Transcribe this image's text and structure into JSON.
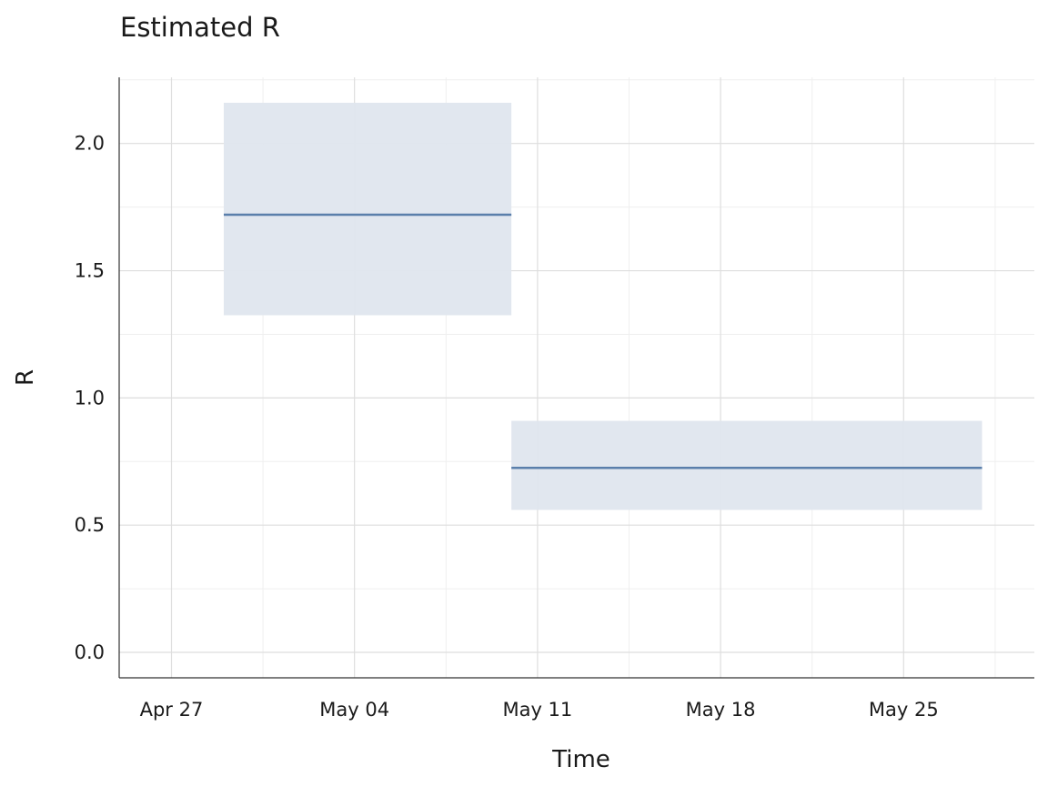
{
  "chart_data": {
    "type": "line",
    "title": "Estimated R",
    "xlabel": "Time",
    "ylabel": "R",
    "x_ticks": [
      "Apr 27",
      "May 04",
      "May 11",
      "May 18",
      "May 25"
    ],
    "x_tick_dates": [
      "2020-04-27",
      "2020-05-04",
      "2020-05-11",
      "2020-05-18",
      "2020-05-25"
    ],
    "xlim": [
      "2020-04-25",
      "2020-05-30"
    ],
    "y_ticks": [
      "0.0",
      "0.5",
      "1.0",
      "1.5",
      "2.0"
    ],
    "ylim": [
      -0.1,
      2.26
    ],
    "grid": true,
    "series": [
      {
        "segments": [
          {
            "x_start": "2020-04-29",
            "x_end": "2020-05-10",
            "mean": 1.72,
            "lower": 1.325,
            "upper": 2.16
          },
          {
            "x_start": "2020-05-10",
            "x_end": "2020-05-28",
            "mean": 0.725,
            "lower": 0.56,
            "upper": 0.91
          }
        ]
      }
    ],
    "colors": {
      "line": "#5a7fab",
      "ribbon": "#dfe6ee",
      "grid_major": "#dedede",
      "grid_minor": "#efefef",
      "axis": "#333333"
    }
  }
}
